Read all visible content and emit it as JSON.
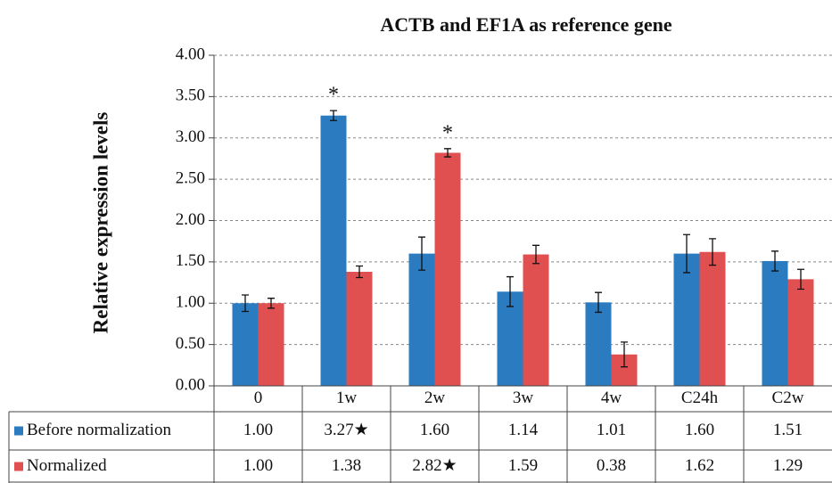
{
  "chart_data": {
    "type": "bar",
    "title": "ACTB and EF1A as reference gene",
    "y_label": "Relative expression levels",
    "categories": [
      "0",
      "1w",
      "2w",
      "3w",
      "4w",
      "C24h",
      "C2w"
    ],
    "series": [
      {
        "name": "Before normalization",
        "color": "#2b7bc0",
        "values": [
          1.0,
          3.27,
          1.6,
          1.14,
          1.01,
          1.6,
          1.51
        ],
        "value_labels": [
          "1.00",
          "3.27★",
          "1.60",
          "1.14",
          "1.01",
          "1.60",
          "1.51"
        ],
        "errors": [
          0.1,
          0.06,
          0.2,
          0.18,
          0.12,
          0.23,
          0.12
        ],
        "significance": [
          null,
          "*",
          null,
          null,
          null,
          null,
          null
        ]
      },
      {
        "name": "Normalized",
        "color": "#e05050",
        "values": [
          1.0,
          1.38,
          2.82,
          1.59,
          0.38,
          1.62,
          1.29
        ],
        "value_labels": [
          "1.00",
          "1.38",
          "2.82★",
          "1.59",
          "0.38",
          "1.62",
          "1.29"
        ],
        "errors": [
          0.06,
          0.07,
          0.05,
          0.11,
          0.15,
          0.16,
          0.12
        ],
        "significance": [
          null,
          null,
          "*",
          null,
          null,
          null,
          null
        ]
      }
    ],
    "ylim": [
      0,
      4
    ],
    "yticks": [
      {
        "value": 0,
        "label": "0.00"
      },
      {
        "value": 0.5,
        "label": "0.50"
      },
      {
        "value": 1,
        "label": "1.00"
      },
      {
        "value": 1.5,
        "label": "1.50"
      },
      {
        "value": 2,
        "label": "2.00"
      },
      {
        "value": 2.5,
        "label": "2.50"
      },
      {
        "value": 3,
        "label": "3.00"
      },
      {
        "value": 3.5,
        "label": "3.50"
      },
      {
        "value": 4,
        "label": "4.00"
      }
    ],
    "grid": true
  }
}
